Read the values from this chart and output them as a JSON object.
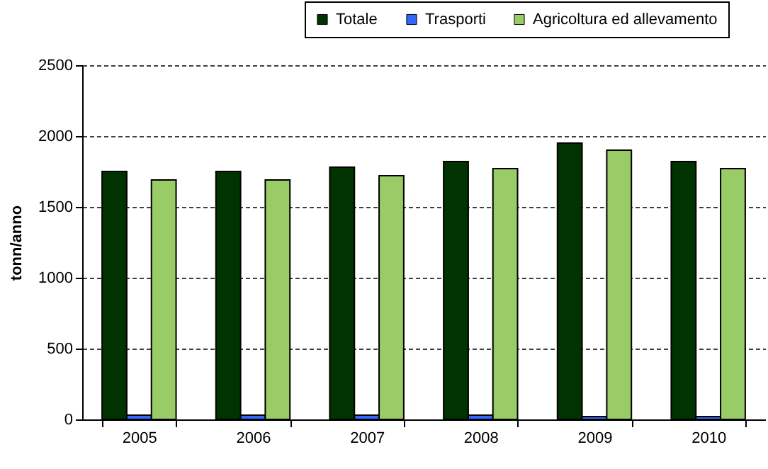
{
  "chart_data": {
    "type": "bar",
    "ylabel": "tonn/anno",
    "categories": [
      "2005",
      "2006",
      "2007",
      "2008",
      "2009",
      "2010"
    ],
    "series": [
      {
        "name": "Totale",
        "color": "#003300",
        "values": [
          1750,
          1750,
          1780,
          1820,
          1950,
          1820
        ]
      },
      {
        "name": "Trasporti",
        "color": "#3366ff",
        "values": [
          30,
          30,
          30,
          30,
          20,
          20
        ]
      },
      {
        "name": "Agricoltura ed allevamento",
        "color": "#99cc66",
        "values": [
          1690,
          1690,
          1720,
          1770,
          1900,
          1770
        ]
      }
    ],
    "ylim": [
      0,
      2500
    ],
    "yticks": [
      0,
      500,
      1000,
      1500,
      2000,
      2500
    ],
    "grid": "y",
    "legend": "top right"
  }
}
